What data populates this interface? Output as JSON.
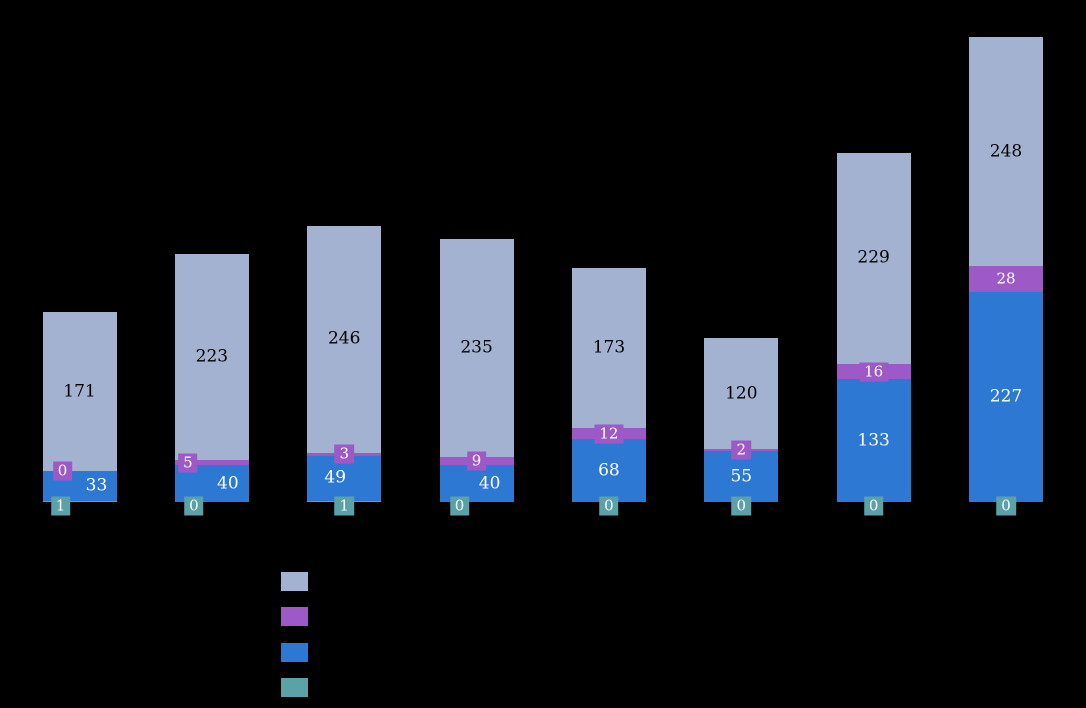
{
  "chart_data": {
    "type": "bar",
    "variant": "stacked-vertical",
    "background_color": "#000000",
    "bar_count": 8,
    "note": "Axis labels, tick labels, title and legend text are rendered in black on a black background and are not visible; only bars, value labels and legend swatches show.",
    "series": [
      {
        "name": "teal-series",
        "color": "#5aa1a8",
        "values": [
          1,
          0,
          1,
          0,
          0,
          0,
          0,
          0
        ]
      },
      {
        "name": "blue-series",
        "color": "#2d78d2",
        "values": [
          33,
          40,
          49,
          40,
          68,
          55,
          133,
          227
        ]
      },
      {
        "name": "purple-series",
        "color": "#9d59c6",
        "values": [
          0,
          5,
          3,
          9,
          12,
          2,
          16,
          28
        ]
      },
      {
        "name": "lightsteel-series",
        "color": "#a3b2d1",
        "values": [
          171,
          223,
          246,
          235,
          173,
          120,
          229,
          248
        ]
      }
    ],
    "stack_order_bottom_to_top": [
      "teal-series",
      "blue-series",
      "purple-series",
      "lightsteel-series"
    ],
    "totals": [
      205,
      268,
      299,
      284,
      253,
      177,
      378,
      503
    ],
    "legend": {
      "labels_visible": false,
      "swatch_colors_top_to_bottom": [
        "#a3b2d1",
        "#9d59c6",
        "#2d78d2",
        "#5aa1a8"
      ]
    },
    "label_colors": {
      "lightsteel_segment_text": "#000000",
      "blue_segment_text": "#ffffff",
      "purple_badge_text": "#ffffff",
      "teal_badge_text": "#ffffff"
    }
  }
}
